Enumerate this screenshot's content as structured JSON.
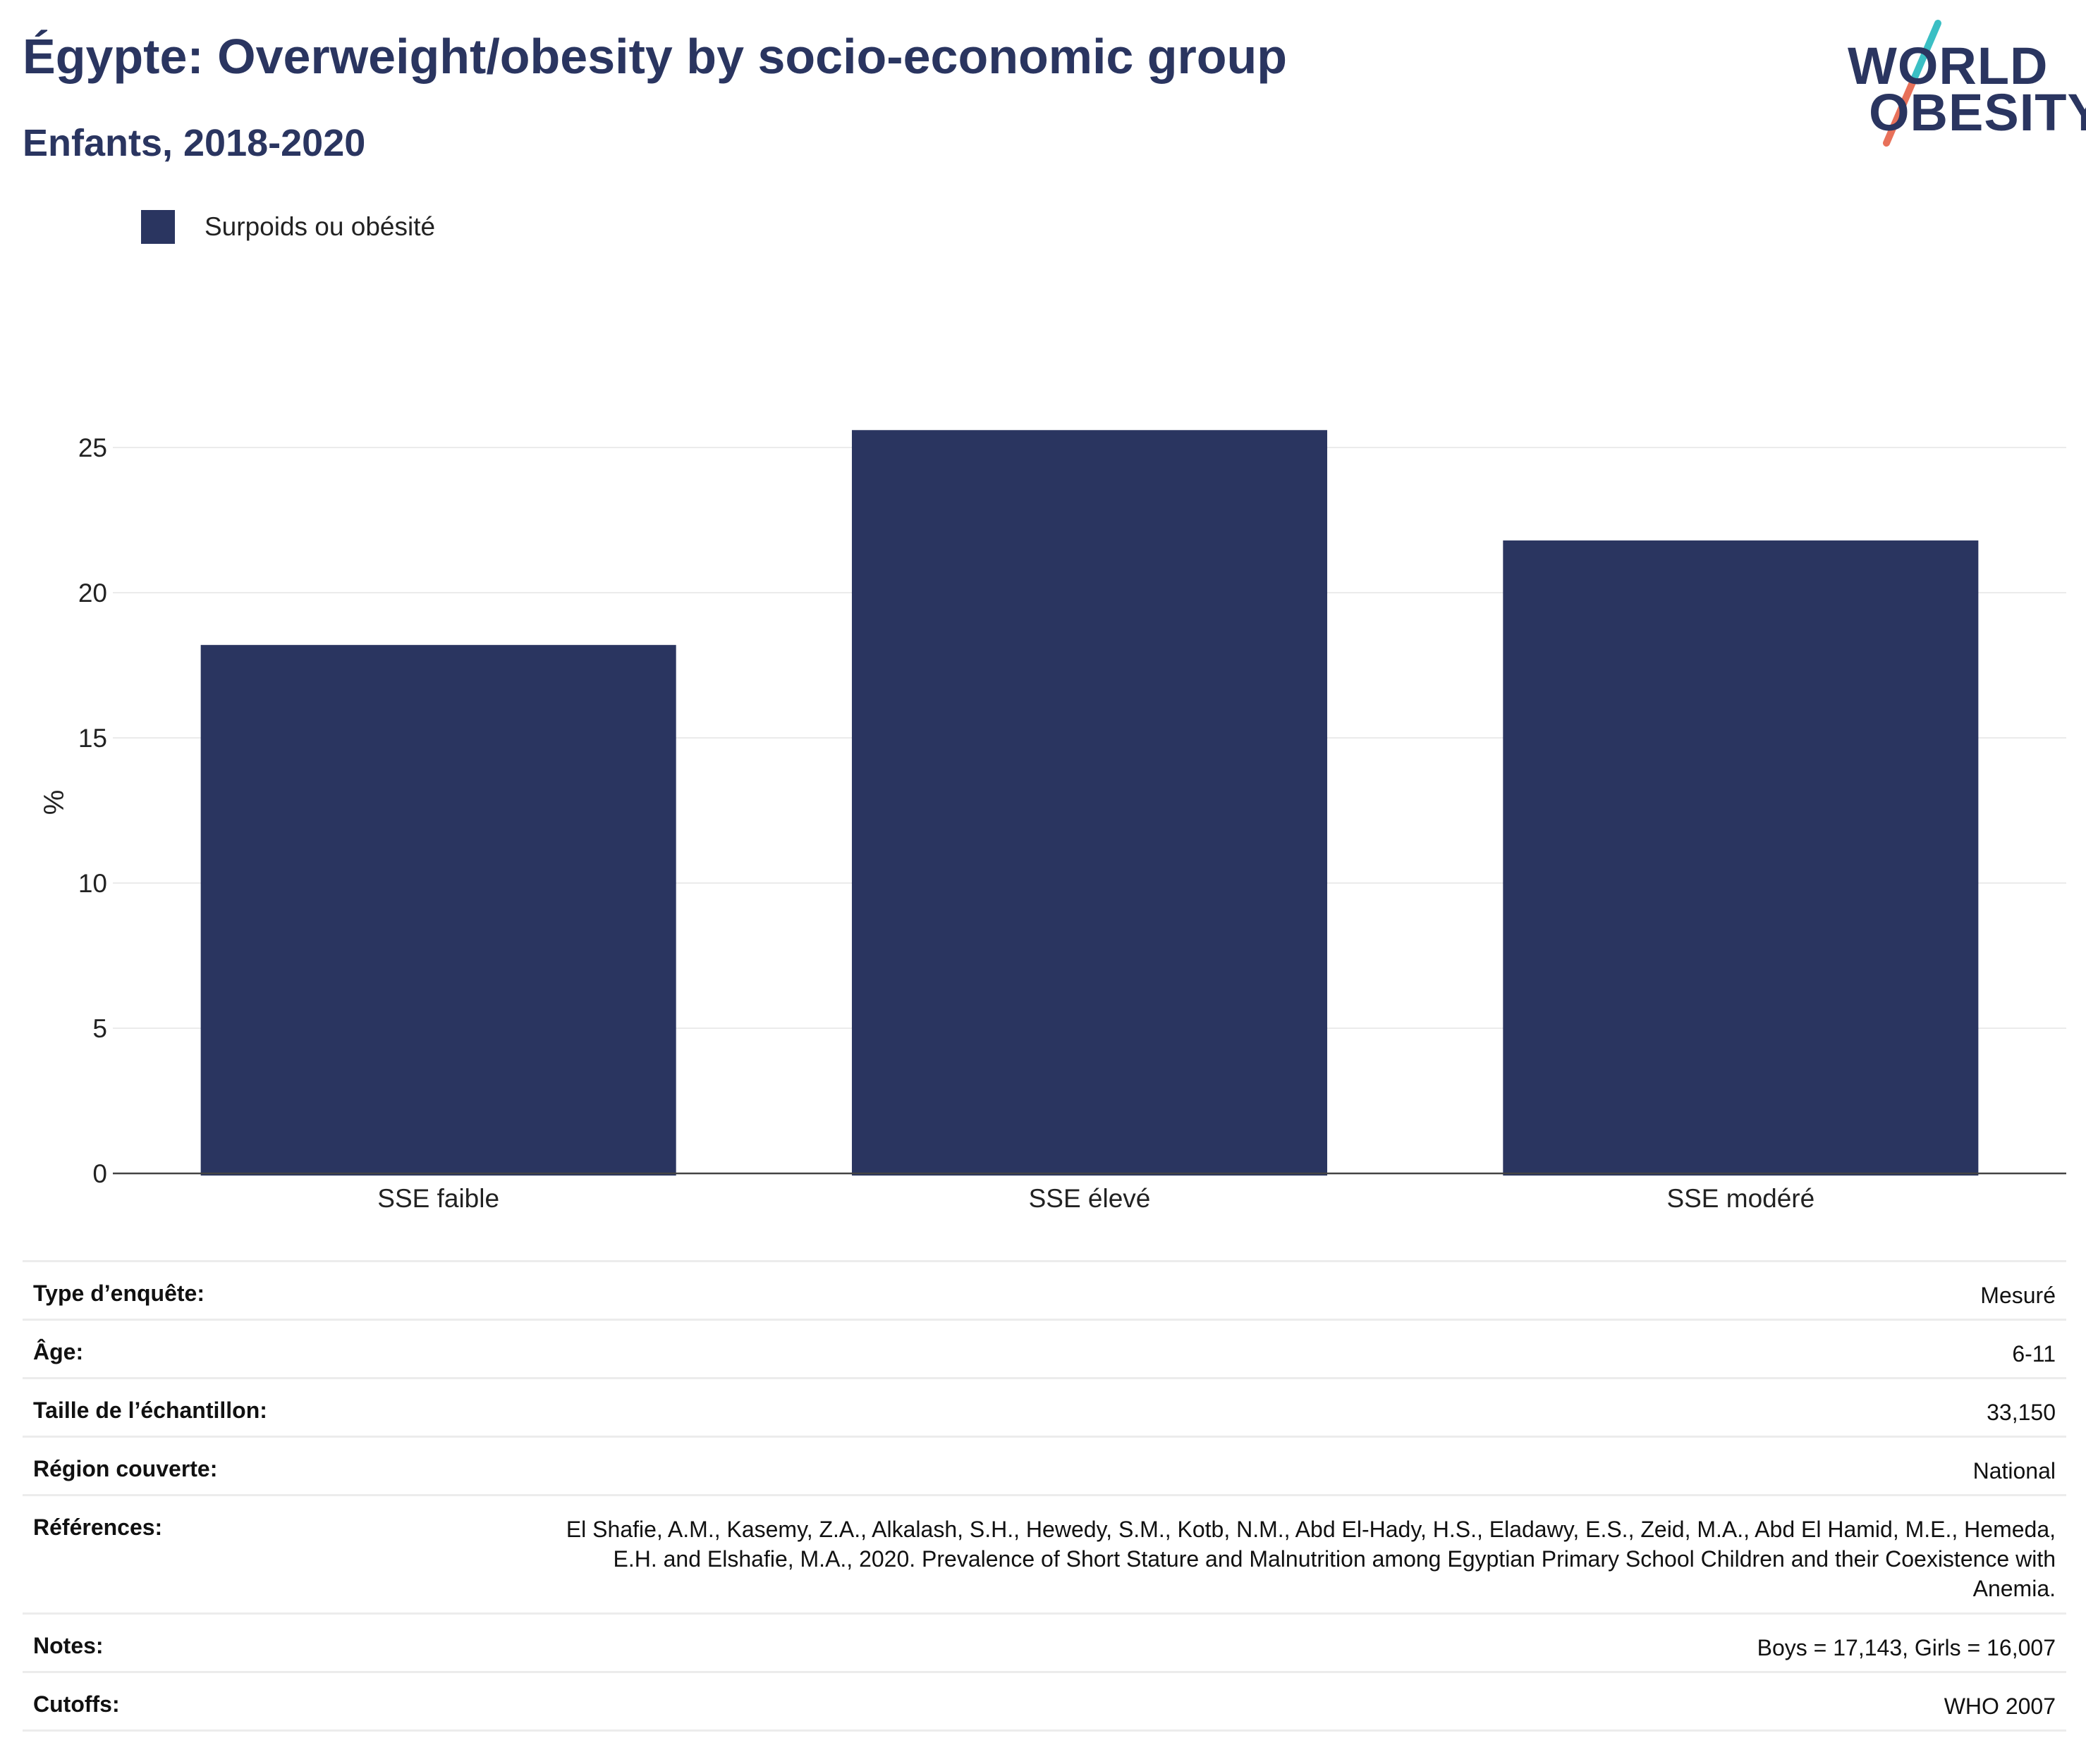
{
  "header": {
    "title": "Égypte: Overweight/obesity by socio-economic group",
    "subtitle": "Enfants, 2018-2020"
  },
  "logo": {
    "line1": "WORLD",
    "line2": "OBESITY",
    "colors": {
      "text": "#2a3560",
      "slash_top": "#3bbfc4",
      "slash_bottom": "#e8715a"
    }
  },
  "chart_data": {
    "type": "bar",
    "categories": [
      "SSE faible",
      "SSE élevé",
      "SSE modéré"
    ],
    "series": [
      {
        "name": "Surpoids ou obésité",
        "values": [
          18.2,
          25.6,
          21.8
        ],
        "color": "#2a3560"
      }
    ],
    "ylabel": "%",
    "ylim": [
      0,
      27.5
    ],
    "yticks": [
      0,
      5,
      10,
      15,
      20,
      25
    ],
    "grid": true,
    "legend_position": "top-left"
  },
  "info": {
    "rows": [
      {
        "key": "Type d’enquête:",
        "value": "Mesuré"
      },
      {
        "key": "Âge:",
        "value": "6-11"
      },
      {
        "key": "Taille de l’échantillon:",
        "value": "33,150"
      },
      {
        "key": "Région couverte:",
        "value": "National"
      },
      {
        "key": "Références:",
        "value": "El Shafie, A.M., Kasemy, Z.A., Alkalash, S.H., Hewedy, S.M., Kotb, N.M., Abd El-Hady, H.S., Eladawy, E.S., Zeid, M.A., Abd El Hamid, M.E., Hemeda, E.H. and Elshafie, M.A., 2020. Prevalence of Short Stature and Malnutrition among Egyptian Primary School Children and their Coexistence with Anemia."
      },
      {
        "key": "Notes:",
        "value": "Boys = 17,143, Girls = 16,007"
      },
      {
        "key": "Cutoffs:",
        "value": "WHO 2007"
      }
    ]
  }
}
